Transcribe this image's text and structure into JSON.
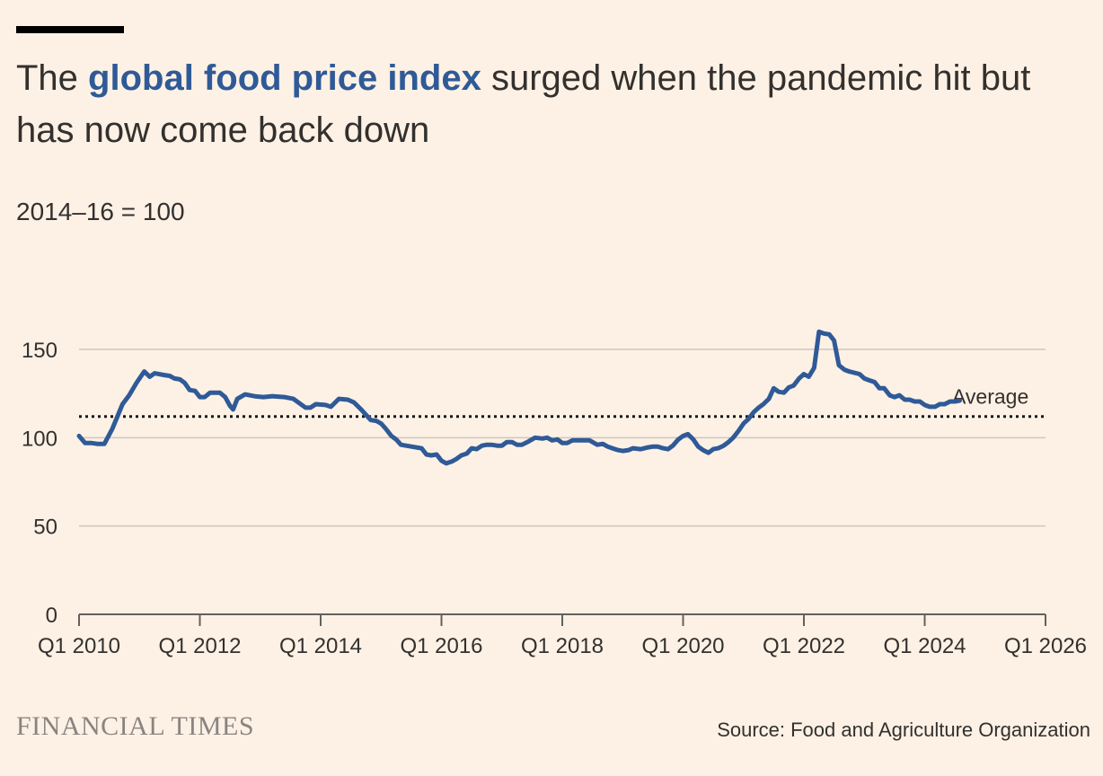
{
  "header": {
    "title_prefix": "The ",
    "title_highlight": "global food price index",
    "title_suffix": " surged when the pandemic hit but has now come back down",
    "subtitle": "2014–16 = 100"
  },
  "footer": {
    "brand": "FINANCIAL TIMES",
    "source": "Source: Food and Agriculture Organization"
  },
  "colors": {
    "background": "#fdf1e5",
    "line": "#2f5a97",
    "title_highlight": "#2f5a97",
    "grid": "#cfc6bd",
    "axis": "#66605c",
    "text": "#33302e"
  },
  "chart_data": {
    "type": "line",
    "title": "The global food price index surged when the pandemic hit but has now come back down",
    "ylabel": "2014–16 = 100",
    "xlim": [
      2010.0,
      2026.0
    ],
    "ylim": [
      0,
      150
    ],
    "grid": true,
    "y_ticks": [
      0,
      50,
      100,
      150
    ],
    "x_ticks": [
      {
        "value": 2010,
        "label": "Q1 2010"
      },
      {
        "value": 2012,
        "label": "Q1 2012"
      },
      {
        "value": 2014,
        "label": "Q1 2014"
      },
      {
        "value": 2016,
        "label": "Q1 2016"
      },
      {
        "value": 2018,
        "label": "Q1 2018"
      },
      {
        "value": 2020,
        "label": "Q1 2020"
      },
      {
        "value": 2022,
        "label": "Q1 2022"
      },
      {
        "value": 2024,
        "label": "Q1 2024"
      },
      {
        "value": 2026,
        "label": "Q1 2026"
      }
    ],
    "reference_line": {
      "label": "Average",
      "value": 112
    },
    "series": [
      {
        "color": "#2f5a97",
        "points": [
          [
            2010.0,
            101
          ],
          [
            2010.1,
            97
          ],
          [
            2010.2,
            97
          ],
          [
            2010.3,
            96.5
          ],
          [
            2010.42,
            96.5
          ],
          [
            2010.55,
            105
          ],
          [
            2010.72,
            119
          ],
          [
            2010.83,
            124
          ],
          [
            2010.95,
            131
          ],
          [
            2011.08,
            137.5
          ],
          [
            2011.17,
            134.5
          ],
          [
            2011.25,
            136.5
          ],
          [
            2011.4,
            135.5
          ],
          [
            2011.5,
            135
          ],
          [
            2011.58,
            133.5
          ],
          [
            2011.67,
            133
          ],
          [
            2011.75,
            131
          ],
          [
            2011.83,
            127
          ],
          [
            2011.92,
            126.5
          ],
          [
            2012.0,
            123
          ],
          [
            2012.08,
            123
          ],
          [
            2012.17,
            125.5
          ],
          [
            2012.33,
            125.5
          ],
          [
            2012.42,
            123
          ],
          [
            2012.5,
            118
          ],
          [
            2012.55,
            116
          ],
          [
            2012.62,
            122
          ],
          [
            2012.75,
            124.5
          ],
          [
            2012.9,
            123.5
          ],
          [
            2013.05,
            123
          ],
          [
            2013.2,
            123.5
          ],
          [
            2013.4,
            123
          ],
          [
            2013.55,
            122
          ],
          [
            2013.67,
            119
          ],
          [
            2013.75,
            117
          ],
          [
            2013.83,
            117
          ],
          [
            2013.92,
            119
          ],
          [
            2014.08,
            118.5
          ],
          [
            2014.17,
            117.5
          ],
          [
            2014.3,
            122
          ],
          [
            2014.45,
            121.5
          ],
          [
            2014.55,
            120
          ],
          [
            2014.67,
            116
          ],
          [
            2014.75,
            113
          ],
          [
            2014.83,
            110
          ],
          [
            2014.92,
            109.5
          ],
          [
            2015.0,
            108
          ],
          [
            2015.08,
            105
          ],
          [
            2015.17,
            101
          ],
          [
            2015.25,
            99
          ],
          [
            2015.33,
            96
          ],
          [
            2015.5,
            95
          ],
          [
            2015.67,
            94
          ],
          [
            2015.75,
            90.5
          ],
          [
            2015.83,
            90
          ],
          [
            2015.92,
            90.5
          ],
          [
            2016.0,
            87
          ],
          [
            2016.08,
            85.5
          ],
          [
            2016.17,
            86.5
          ],
          [
            2016.25,
            88
          ],
          [
            2016.33,
            90
          ],
          [
            2016.42,
            91
          ],
          [
            2016.5,
            94
          ],
          [
            2016.58,
            93.5
          ],
          [
            2016.67,
            95.5
          ],
          [
            2016.75,
            96
          ],
          [
            2016.83,
            96
          ],
          [
            2016.92,
            95.5
          ],
          [
            2017.0,
            95.5
          ],
          [
            2017.08,
            97.5
          ],
          [
            2017.17,
            97.5
          ],
          [
            2017.25,
            96
          ],
          [
            2017.33,
            96
          ],
          [
            2017.42,
            97.5
          ],
          [
            2017.55,
            100
          ],
          [
            2017.67,
            99.5
          ],
          [
            2017.75,
            100
          ],
          [
            2017.83,
            98.5
          ],
          [
            2017.92,
            99
          ],
          [
            2018.0,
            97
          ],
          [
            2018.08,
            97
          ],
          [
            2018.17,
            98.5
          ],
          [
            2018.33,
            98.5
          ],
          [
            2018.45,
            98.5
          ],
          [
            2018.58,
            96
          ],
          [
            2018.67,
            96.5
          ],
          [
            2018.75,
            95
          ],
          [
            2018.83,
            94
          ],
          [
            2018.92,
            93
          ],
          [
            2019.0,
            92.5
          ],
          [
            2019.1,
            93
          ],
          [
            2019.17,
            94
          ],
          [
            2019.3,
            93.5
          ],
          [
            2019.42,
            94.5
          ],
          [
            2019.5,
            95
          ],
          [
            2019.58,
            95
          ],
          [
            2019.67,
            94
          ],
          [
            2019.75,
            93.5
          ],
          [
            2019.83,
            95.5
          ],
          [
            2019.92,
            99
          ],
          [
            2020.0,
            101
          ],
          [
            2020.08,
            102
          ],
          [
            2020.17,
            99
          ],
          [
            2020.25,
            95
          ],
          [
            2020.33,
            93
          ],
          [
            2020.42,
            91.5
          ],
          [
            2020.5,
            93.5
          ],
          [
            2020.58,
            94
          ],
          [
            2020.67,
            95.5
          ],
          [
            2020.75,
            97.5
          ],
          [
            2020.83,
            100
          ],
          [
            2020.92,
            104
          ],
          [
            2021.0,
            108
          ],
          [
            2021.08,
            110.5
          ],
          [
            2021.17,
            114.5
          ],
          [
            2021.25,
            117
          ],
          [
            2021.33,
            119
          ],
          [
            2021.42,
            122
          ],
          [
            2021.5,
            128
          ],
          [
            2021.58,
            126
          ],
          [
            2021.67,
            125.5
          ],
          [
            2021.75,
            128.5
          ],
          [
            2021.83,
            129.5
          ],
          [
            2021.92,
            133.5
          ],
          [
            2022.0,
            136
          ],
          [
            2022.08,
            134.5
          ],
          [
            2022.17,
            139.5
          ],
          [
            2022.25,
            160
          ],
          [
            2022.33,
            159
          ],
          [
            2022.42,
            158.5
          ],
          [
            2022.5,
            155
          ],
          [
            2022.58,
            141
          ],
          [
            2022.67,
            138.5
          ],
          [
            2022.75,
            137.5
          ],
          [
            2022.92,
            136
          ],
          [
            2023.0,
            133.5
          ],
          [
            2023.08,
            132.5
          ],
          [
            2023.17,
            131.5
          ],
          [
            2023.25,
            128
          ],
          [
            2023.33,
            128
          ],
          [
            2023.42,
            124
          ],
          [
            2023.5,
            123
          ],
          [
            2023.58,
            124
          ],
          [
            2023.67,
            121.5
          ],
          [
            2023.75,
            121.5
          ],
          [
            2023.83,
            120.5
          ],
          [
            2023.92,
            120.5
          ],
          [
            2024.0,
            118.5
          ],
          [
            2024.08,
            117.5
          ],
          [
            2024.17,
            117.5
          ],
          [
            2024.25,
            119
          ],
          [
            2024.33,
            119
          ],
          [
            2024.42,
            120.5
          ],
          [
            2024.5,
            120.5
          ],
          [
            2024.58,
            121
          ]
        ]
      }
    ]
  }
}
